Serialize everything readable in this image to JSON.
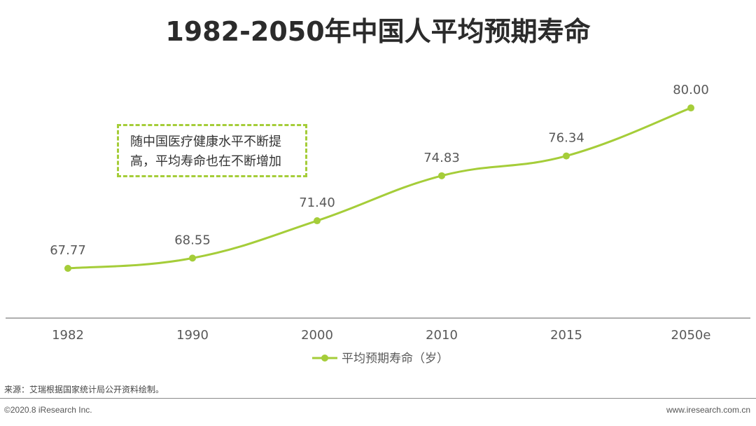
{
  "title": "1982-2050年中国人平均预期寿命",
  "callout": {
    "line1": "随中国医疗健康水平不断提",
    "line2": "高，平均寿命也在不断增加"
  },
  "source": "来源：艾瑞根据国家统计局公开资料绘制。",
  "copyright": "©2020.8 iResearch Inc.",
  "website": "www.iresearch.com.cn",
  "colors": {
    "series": "#a5cd39",
    "axis": "#7f7f7f",
    "text": "#595959"
  },
  "chart_data": {
    "type": "line",
    "categories": [
      "1982",
      "1990",
      "2000",
      "2010",
      "2015",
      "2050e"
    ],
    "series": [
      {
        "name": "平均预期寿命（岁）",
        "values": [
          67.77,
          68.55,
          71.4,
          74.83,
          76.34,
          80.0
        ]
      }
    ],
    "data_labels": [
      "67.77",
      "68.55",
      "71.40",
      "74.83",
      "76.34",
      "80.00"
    ],
    "legend_position": "bottom",
    "grid": false,
    "smooth": true
  }
}
